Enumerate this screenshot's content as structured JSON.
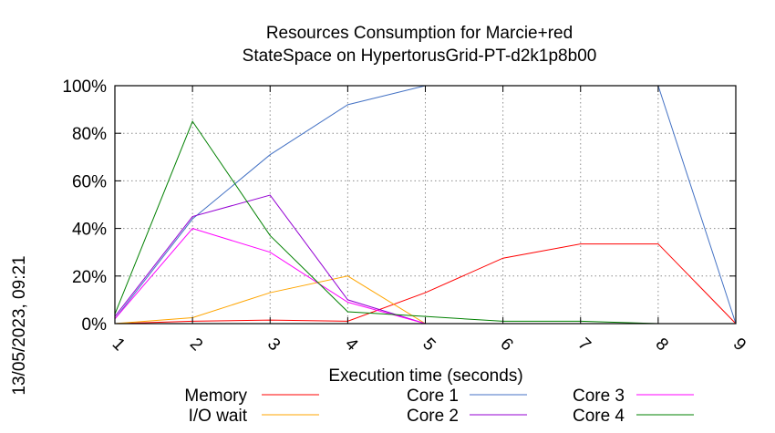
{
  "chart_data": {
    "type": "line",
    "title": [
      "Resources Consumption for Marcie+red",
      "StateSpace on HypertorusGrid-PT-d2k1p8b00"
    ],
    "xlabel": "Execution time (seconds)",
    "ylabel": "",
    "side_label": "13/05/2023, 09:21",
    "x": [
      1,
      2,
      3,
      4,
      5,
      6,
      7,
      8,
      9
    ],
    "xlim": [
      1,
      9
    ],
    "ylim": [
      0,
      100
    ],
    "x_ticks": [
      "1",
      "2",
      "3",
      "4",
      "5",
      "6",
      "7",
      "8",
      "9"
    ],
    "y_ticks": [
      {
        "value": 0,
        "label": "0%"
      },
      {
        "value": 20,
        "label": "20%"
      },
      {
        "value": 40,
        "label": "40%"
      },
      {
        "value": 60,
        "label": "60%"
      },
      {
        "value": 80,
        "label": "80%"
      },
      {
        "value": 100,
        "label": "100%"
      }
    ],
    "grid": true,
    "legend_position": "bottom",
    "series": [
      {
        "name": "Memory",
        "color": "#ff0000",
        "values": [
          0,
          1,
          1.5,
          1,
          13,
          27.5,
          33.5,
          33.5,
          0
        ]
      },
      {
        "name": "I/O wait",
        "color": "#ffa500",
        "values": [
          0,
          2.5,
          13,
          20,
          0,
          0,
          0,
          0,
          0
        ]
      },
      {
        "name": "Core 1",
        "color": "#4472c4",
        "values": [
          2,
          44,
          71,
          92,
          100,
          100,
          100,
          100,
          0
        ]
      },
      {
        "name": "Core 2",
        "color": "#9400d3",
        "values": [
          3,
          45,
          54,
          10,
          0,
          0,
          0,
          0,
          0
        ]
      },
      {
        "name": "Core 3",
        "color": "#ff00ff",
        "values": [
          2,
          40,
          30,
          9,
          0,
          0,
          0,
          0,
          0
        ]
      },
      {
        "name": "Core 4",
        "color": "#008000",
        "values": [
          4,
          85,
          37,
          5,
          3,
          1,
          1,
          0,
          0
        ]
      }
    ]
  }
}
